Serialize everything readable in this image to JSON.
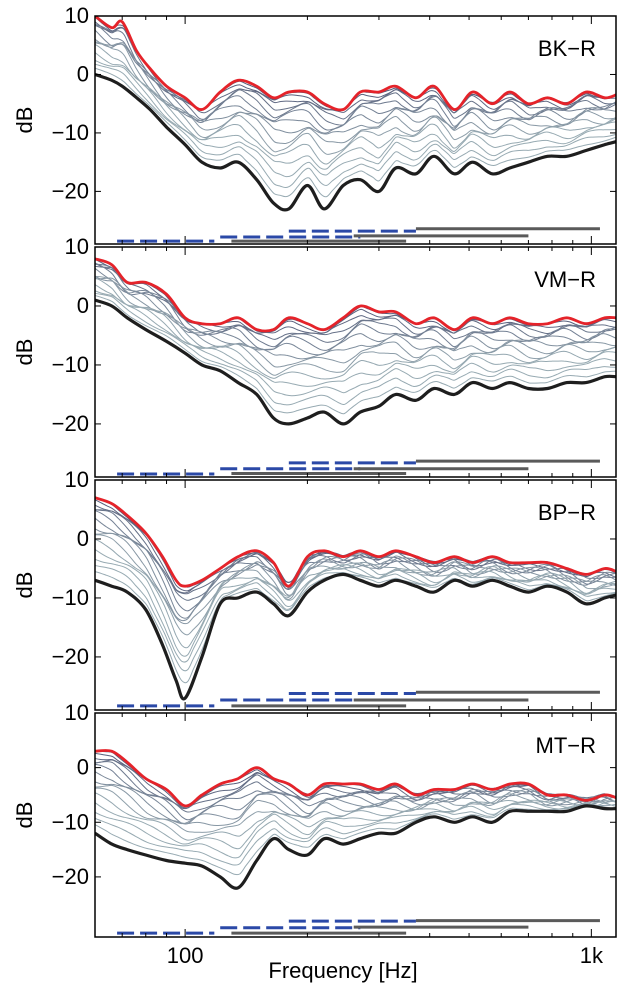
{
  "chart_data": [
    {
      "type": "line",
      "label": "BK−R",
      "ylabel": "dB",
      "xlabel": "",
      "ylim": [
        -29,
        10
      ],
      "yticks": [
        10,
        0,
        -10,
        -20
      ],
      "ytick_labels": [
        "10",
        "0",
        "−10",
        "−20"
      ],
      "xscale": "log",
      "xlim": [
        60,
        1150
      ],
      "upper": {
        "x": [
          60,
          66,
          70,
          76,
          82,
          90,
          100,
          110,
          122,
          135,
          150,
          165,
          180,
          200,
          220,
          245,
          270,
          300,
          330,
          370,
          410,
          460,
          510,
          570,
          630,
          700,
          780,
          870,
          970,
          1080,
          1150
        ],
        "y": [
          10,
          8,
          9,
          4,
          1,
          -2,
          -4,
          -6,
          -3,
          -1,
          -2,
          -4,
          -3,
          -3,
          -5,
          -6,
          -3,
          -3,
          -2,
          -4,
          -2,
          -6,
          -3,
          -5,
          -3,
          -5,
          -4,
          -5,
          -3,
          -4,
          -3.5
        ]
      },
      "lower": {
        "x": [
          60,
          66,
          70,
          76,
          82,
          90,
          100,
          110,
          122,
          135,
          150,
          165,
          180,
          200,
          220,
          245,
          270,
          300,
          330,
          370,
          410,
          460,
          510,
          570,
          630,
          700,
          780,
          870,
          970,
          1080,
          1150
        ],
        "y": [
          0,
          -1,
          -2,
          -4,
          -6,
          -9,
          -12,
          -15,
          -16,
          -15,
          -18,
          -22,
          -23,
          -19,
          -23,
          -19,
          -18,
          -20,
          -16,
          -17,
          -14,
          -17,
          -15,
          -17,
          -16,
          -15,
          -14,
          -14,
          -13,
          -12,
          -11.5
        ]
      },
      "stripes": [
        {
          "y": -28.5,
          "x1": 68,
          "x2": 118,
          "color": "#2b49a7",
          "dashed": true
        },
        {
          "y": -27.8,
          "x1": 122,
          "x2": 270,
          "color": "#2b49a7",
          "dashed": true
        },
        {
          "y": -26.8,
          "x1": 180,
          "x2": 370,
          "color": "#2b49a7",
          "dashed": true
        },
        {
          "y": -28.5,
          "x1": 130,
          "x2": 350,
          "color": "#5a5a5a",
          "dashed": false
        },
        {
          "y": -27.6,
          "x1": 260,
          "x2": 700,
          "color": "#5a5a5a",
          "dashed": false
        },
        {
          "y": -26.4,
          "x1": 370,
          "x2": 1050,
          "color": "#5a5a5a",
          "dashed": false
        }
      ]
    },
    {
      "type": "line",
      "label": "VM−R",
      "ylabel": "dB",
      "xlabel": "",
      "ylim": [
        -29,
        10
      ],
      "yticks": [
        10,
        0,
        -10,
        -20
      ],
      "ytick_labels": [
        "10",
        "0",
        "−10",
        "−20"
      ],
      "xscale": "log",
      "xlim": [
        60,
        1150
      ],
      "upper": {
        "x": [
          60,
          66,
          72,
          80,
          90,
          100,
          110,
          122,
          135,
          150,
          165,
          180,
          200,
          220,
          245,
          270,
          300,
          330,
          370,
          410,
          460,
          510,
          570,
          630,
          700,
          780,
          870,
          970,
          1080,
          1150
        ],
        "y": [
          8,
          7,
          4,
          4,
          2,
          -2,
          -3,
          -3,
          -2,
          -4,
          -4,
          -2,
          -3,
          -4,
          -2,
          0,
          -1,
          -1,
          -3,
          -2,
          -4,
          -2,
          -3,
          -2,
          -3,
          -3,
          -2,
          -3,
          -2,
          -2
        ]
      },
      "lower": {
        "x": [
          60,
          66,
          72,
          80,
          90,
          100,
          110,
          122,
          135,
          150,
          165,
          180,
          200,
          220,
          245,
          270,
          300,
          330,
          370,
          410,
          460,
          510,
          570,
          630,
          700,
          780,
          870,
          970,
          1080,
          1150
        ],
        "y": [
          1,
          0,
          -2,
          -4,
          -6,
          -8,
          -10,
          -11,
          -13,
          -15,
          -19,
          -20,
          -19,
          -18,
          -20,
          -18,
          -17,
          -15,
          -16,
          -14,
          -15,
          -13,
          -14,
          -13,
          -14,
          -14,
          -13,
          -13,
          -12,
          -12
        ]
      },
      "stripes": [
        {
          "y": -28.5,
          "x1": 68,
          "x2": 118,
          "color": "#2b49a7",
          "dashed": true
        },
        {
          "y": -27.6,
          "x1": 122,
          "x2": 270,
          "color": "#2b49a7",
          "dashed": true
        },
        {
          "y": -26.6,
          "x1": 180,
          "x2": 370,
          "color": "#2b49a7",
          "dashed": true
        },
        {
          "y": -28.4,
          "x1": 130,
          "x2": 350,
          "color": "#5a5a5a",
          "dashed": false
        },
        {
          "y": -27.6,
          "x1": 260,
          "x2": 700,
          "color": "#5a5a5a",
          "dashed": false
        },
        {
          "y": -26.3,
          "x1": 370,
          "x2": 1050,
          "color": "#5a5a5a",
          "dashed": false
        }
      ]
    },
    {
      "type": "line",
      "label": "BP−R",
      "ylabel": "dB",
      "xlabel": "",
      "ylim": [
        -29,
        10
      ],
      "yticks": [
        10,
        0,
        -10,
        -20
      ],
      "ytick_labels": [
        "10",
        "0",
        "−10",
        "−20"
      ],
      "xscale": "log",
      "xlim": [
        60,
        1150
      ],
      "upper": {
        "x": [
          60,
          66,
          72,
          80,
          88,
          95,
          100,
          110,
          122,
          135,
          150,
          165,
          180,
          200,
          220,
          245,
          270,
          300,
          330,
          370,
          410,
          460,
          510,
          570,
          630,
          700,
          780,
          870,
          970,
          1080,
          1150
        ],
        "y": [
          7,
          6,
          4,
          1,
          -3,
          -7,
          -8,
          -7,
          -5,
          -3,
          -2,
          -4,
          -8,
          -3,
          -2,
          -3,
          -2,
          -3,
          -2,
          -3,
          -4,
          -3,
          -4,
          -3,
          -4,
          -4,
          -4,
          -5,
          -6,
          -5,
          -5.5
        ]
      },
      "lower": {
        "x": [
          60,
          66,
          72,
          80,
          88,
          95,
          100,
          110,
          122,
          135,
          150,
          165,
          180,
          200,
          220,
          245,
          270,
          300,
          330,
          370,
          410,
          460,
          510,
          570,
          630,
          700,
          780,
          870,
          970,
          1080,
          1150
        ],
        "y": [
          -7,
          -8,
          -9,
          -12,
          -18,
          -24,
          -27,
          -20,
          -11,
          -10,
          -9,
          -11,
          -13,
          -9,
          -7,
          -6,
          -7,
          -8,
          -7,
          -8,
          -9,
          -7,
          -8,
          -7,
          -8,
          -9,
          -8,
          -9,
          -11,
          -10,
          -9.5
        ]
      },
      "stripes": [
        {
          "y": -28.3,
          "x1": 68,
          "x2": 118,
          "color": "#2b49a7",
          "dashed": true
        },
        {
          "y": -27.3,
          "x1": 122,
          "x2": 270,
          "color": "#2b49a7",
          "dashed": true
        },
        {
          "y": -26.2,
          "x1": 180,
          "x2": 370,
          "color": "#2b49a7",
          "dashed": true
        },
        {
          "y": -28.3,
          "x1": 130,
          "x2": 350,
          "color": "#5a5a5a",
          "dashed": false
        },
        {
          "y": -27.3,
          "x1": 260,
          "x2": 700,
          "color": "#5a5a5a",
          "dashed": false
        },
        {
          "y": -26.0,
          "x1": 370,
          "x2": 1050,
          "color": "#5a5a5a",
          "dashed": false
        }
      ]
    },
    {
      "type": "line",
      "label": "MT−R",
      "ylabel": "dB",
      "xlabel": "Frequency [Hz]",
      "ylim": [
        -31,
        10
      ],
      "yticks": [
        10,
        0,
        -10,
        -20
      ],
      "ytick_labels": [
        "10",
        "0",
        "−10",
        "−20"
      ],
      "xscale": "log",
      "xlim": [
        60,
        1150
      ],
      "xticks": [
        100,
        1000
      ],
      "xtick_labels": [
        "100",
        "1k"
      ],
      "upper": {
        "x": [
          60,
          66,
          72,
          80,
          90,
          100,
          110,
          122,
          135,
          150,
          165,
          180,
          200,
          220,
          245,
          270,
          300,
          330,
          370,
          410,
          460,
          510,
          570,
          630,
          700,
          780,
          870,
          970,
          1080,
          1150
        ],
        "y": [
          3,
          3,
          1,
          -2,
          -4,
          -7,
          -5,
          -3,
          -2,
          0,
          -2,
          -3,
          -5,
          -3,
          -3,
          -3,
          -4,
          -3,
          -5,
          -4,
          -4,
          -3,
          -4,
          -3,
          -3,
          -5,
          -5,
          -6,
          -5,
          -5.5
        ]
      },
      "lower": {
        "x": [
          60,
          66,
          72,
          80,
          90,
          100,
          110,
          122,
          135,
          150,
          165,
          180,
          200,
          220,
          245,
          270,
          300,
          330,
          370,
          410,
          460,
          510,
          570,
          630,
          700,
          780,
          870,
          970,
          1080,
          1150
        ],
        "y": [
          -12,
          -14,
          -15,
          -16,
          -17,
          -17.5,
          -18,
          -20,
          -22,
          -17,
          -13,
          -15,
          -16,
          -13,
          -14,
          -13,
          -12,
          -12,
          -10,
          -9,
          -10,
          -9,
          -10,
          -8,
          -8,
          -8,
          -8,
          -7,
          -7.5,
          -7.5
        ]
      },
      "stripes": [
        {
          "y": -30.3,
          "x1": 68,
          "x2": 118,
          "color": "#2b49a7",
          "dashed": true
        },
        {
          "y": -29.3,
          "x1": 122,
          "x2": 270,
          "color": "#2b49a7",
          "dashed": true
        },
        {
          "y": -28.1,
          "x1": 180,
          "x2": 370,
          "color": "#2b49a7",
          "dashed": true
        },
        {
          "y": -30.3,
          "x1": 130,
          "x2": 350,
          "color": "#5a5a5a",
          "dashed": false
        },
        {
          "y": -29.2,
          "x1": 260,
          "x2": 700,
          "color": "#5a5a5a",
          "dashed": false
        },
        {
          "y": -28.0,
          "x1": 370,
          "x2": 1050,
          "color": "#5a5a5a",
          "dashed": false
        }
      ]
    }
  ],
  "colors": {
    "upper": "#e5232a",
    "lower": "#1e1e1e",
    "fan_dark": "#4c5272",
    "fan_light": "#97aab2",
    "stripe_blue": "#2b49a7",
    "stripe_gray": "#5a5a5a"
  }
}
